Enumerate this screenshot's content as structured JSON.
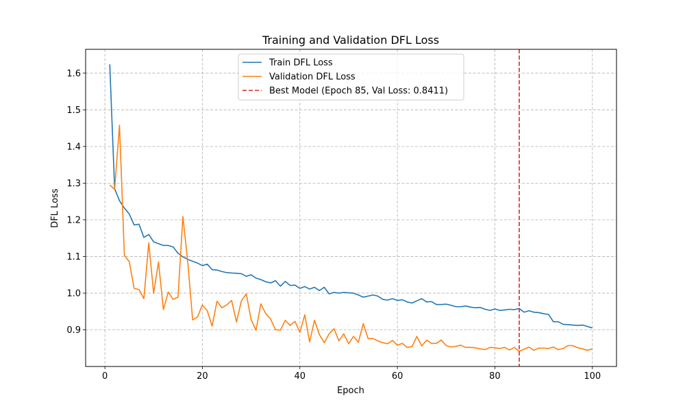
{
  "chart_data": {
    "type": "line",
    "title": "Training and Validation DFL Loss",
    "xlabel": "Epoch",
    "ylabel": "DFL Loss",
    "xlim": [
      -3.95,
      104.95
    ],
    "ylim": [
      0.8,
      1.665
    ],
    "xticks": [
      0,
      20,
      40,
      60,
      80,
      100
    ],
    "yticks": [
      0.9,
      1.0,
      1.1,
      1.2,
      1.3,
      1.4,
      1.5,
      1.6
    ],
    "grid": true,
    "legend_placement": "upper center",
    "series": [
      {
        "name": "Train DFL Loss",
        "color": "#1f77b4",
        "x": [
          1,
          2,
          3,
          4,
          5,
          6,
          7,
          8,
          9,
          10,
          11,
          12,
          13,
          14,
          15,
          16,
          17,
          18,
          19,
          20,
          21,
          22,
          23,
          24,
          25,
          26,
          27,
          28,
          29,
          30,
          31,
          32,
          33,
          34,
          35,
          36,
          37,
          38,
          39,
          40,
          41,
          42,
          43,
          44,
          45,
          46,
          47,
          48,
          49,
          50,
          51,
          52,
          53,
          54,
          55,
          56,
          57,
          58,
          59,
          60,
          61,
          62,
          63,
          64,
          65,
          66,
          67,
          68,
          69,
          70,
          71,
          72,
          73,
          74,
          75,
          76,
          77,
          78,
          79,
          80,
          81,
          82,
          83,
          84,
          85,
          86,
          87,
          88,
          89,
          90,
          91,
          92,
          93,
          94,
          95,
          96,
          97,
          98,
          99,
          100
        ],
        "y": [
          1.624,
          1.285,
          1.252,
          1.232,
          1.216,
          1.186,
          1.188,
          1.152,
          1.16,
          1.14,
          1.135,
          1.13,
          1.13,
          1.126,
          1.109,
          1.099,
          1.092,
          1.087,
          1.082,
          1.075,
          1.079,
          1.064,
          1.063,
          1.059,
          1.056,
          1.055,
          1.054,
          1.053,
          1.046,
          1.05,
          1.041,
          1.037,
          1.031,
          1.028,
          1.034,
          1.019,
          1.032,
          1.021,
          1.022,
          1.013,
          1.018,
          1.011,
          1.016,
          1.007,
          1.016,
          0.998,
          1.002,
          1.0,
          1.002,
          1.001,
          1.0,
          0.995,
          0.989,
          0.992,
          0.995,
          0.992,
          0.983,
          0.981,
          0.985,
          0.98,
          0.982,
          0.976,
          0.973,
          0.979,
          0.985,
          0.976,
          0.977,
          0.969,
          0.969,
          0.97,
          0.967,
          0.963,
          0.963,
          0.965,
          0.962,
          0.96,
          0.961,
          0.956,
          0.953,
          0.957,
          0.953,
          0.954,
          0.956,
          0.955,
          0.958,
          0.948,
          0.952,
          0.948,
          0.947,
          0.944,
          0.942,
          0.922,
          0.922,
          0.915,
          0.914,
          0.913,
          0.912,
          0.913,
          0.909,
          0.905
        ]
      },
      {
        "name": "Validation DFL Loss",
        "color": "#ff7f0e",
        "x": [
          1,
          2,
          3,
          4,
          5,
          6,
          7,
          8,
          9,
          10,
          11,
          12,
          13,
          14,
          15,
          16,
          17,
          18,
          19,
          20,
          21,
          22,
          23,
          24,
          25,
          26,
          27,
          28,
          29,
          30,
          31,
          32,
          33,
          34,
          35,
          36,
          37,
          38,
          39,
          40,
          41,
          42,
          43,
          44,
          45,
          46,
          47,
          48,
          49,
          50,
          51,
          52,
          53,
          54,
          55,
          56,
          57,
          58,
          59,
          60,
          61,
          62,
          63,
          64,
          65,
          66,
          67,
          68,
          69,
          70,
          71,
          72,
          73,
          74,
          75,
          76,
          77,
          78,
          79,
          80,
          81,
          82,
          83,
          84,
          85,
          86,
          87,
          88,
          89,
          90,
          91,
          92,
          93,
          94,
          95,
          96,
          97,
          98,
          99,
          100
        ],
        "y": [
          1.295,
          1.283,
          1.458,
          1.103,
          1.086,
          1.013,
          1.01,
          0.985,
          1.137,
          1.0,
          1.085,
          0.955,
          1.003,
          0.983,
          0.989,
          1.209,
          1.085,
          0.927,
          0.935,
          0.968,
          0.952,
          0.91,
          0.978,
          0.96,
          0.968,
          0.98,
          0.921,
          0.979,
          0.998,
          0.928,
          0.899,
          0.971,
          0.944,
          0.929,
          0.9,
          0.899,
          0.926,
          0.912,
          0.923,
          0.893,
          0.941,
          0.867,
          0.926,
          0.887,
          0.865,
          0.889,
          0.903,
          0.87,
          0.889,
          0.862,
          0.882,
          0.866,
          0.917,
          0.876,
          0.876,
          0.87,
          0.865,
          0.862,
          0.871,
          0.858,
          0.863,
          0.852,
          0.854,
          0.882,
          0.856,
          0.872,
          0.863,
          0.863,
          0.872,
          0.857,
          0.853,
          0.855,
          0.858,
          0.852,
          0.852,
          0.851,
          0.848,
          0.846,
          0.852,
          0.851,
          0.849,
          0.852,
          0.845,
          0.852,
          0.841,
          0.847,
          0.853,
          0.844,
          0.85,
          0.85,
          0.849,
          0.853,
          0.846,
          0.849,
          0.857,
          0.857,
          0.851,
          0.848,
          0.844,
          0.848
        ]
      }
    ],
    "annotations": [
      {
        "type": "vline",
        "x": 85,
        "name": "Best Model (Epoch 85, Val Loss: 0.8411)",
        "color": "#d62728",
        "style": "dashed"
      }
    ]
  }
}
